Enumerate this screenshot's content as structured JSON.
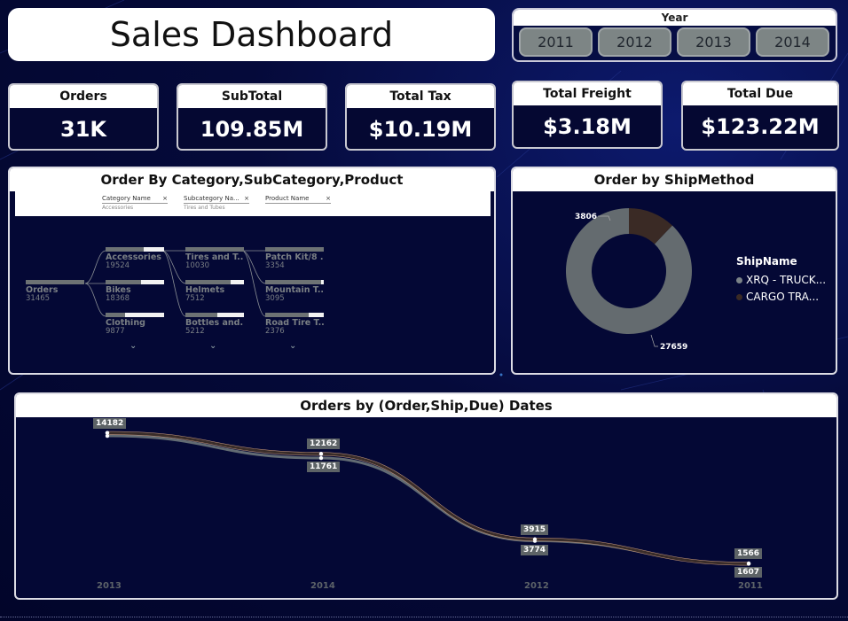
{
  "title": "Sales Dashboard",
  "year_slicer": {
    "label": "Year",
    "years": [
      "2011",
      "2012",
      "2013",
      "2014"
    ]
  },
  "kpis": [
    {
      "label": "Orders",
      "value": "31K"
    },
    {
      "label": "SubTotal",
      "value": "109.85M"
    },
    {
      "label": "Total Tax",
      "value": "$10.19M"
    },
    {
      "label": "Total Freight",
      "value": "$3.18M"
    },
    {
      "label": "Total Due",
      "value": "$123.22M"
    }
  ],
  "decomposition": {
    "title": "Order By Category,SubCategory,Product",
    "filters": [
      {
        "name": "Category Name",
        "sub": "Accessories"
      },
      {
        "name": "Subcategory Na...",
        "sub": "Tires and Tubes"
      },
      {
        "name": "Product Name",
        "sub": ""
      }
    ],
    "root": {
      "label": "Orders",
      "count": "31465",
      "share": 1.0
    },
    "level1": [
      {
        "label": "Accessories",
        "count": "19524",
        "share": 0.62
      },
      {
        "label": "Bikes",
        "count": "18368",
        "share": 0.58
      },
      {
        "label": "Clothing",
        "count": "9877",
        "share": 0.31
      }
    ],
    "level2": [
      {
        "label": "Tires and T...",
        "count": "10030",
        "share": 1.0
      },
      {
        "label": "Helmets",
        "count": "7512",
        "share": 0.75
      },
      {
        "label": "Bottles and...",
        "count": "5212",
        "share": 0.52
      }
    ],
    "level3": [
      {
        "label": "Patch Kit/8 ...",
        "count": "3354",
        "share": 1.0
      },
      {
        "label": "Mountain T...",
        "count": "3095",
        "share": 0.92
      },
      {
        "label": "Road Tire T...",
        "count": "2376",
        "share": 0.71
      }
    ]
  },
  "shipmethod": {
    "title": "Order by ShipMethod",
    "legend_title": "ShipName",
    "colors": [
      "#646b6f",
      "#3a2a25"
    ],
    "chart_data": {
      "type": "pie",
      "labels": [
        "XRQ - TRUCK...",
        "CARGO TRA..."
      ],
      "values": [
        27659,
        3806
      ]
    }
  },
  "dates_chart": {
    "title": "Orders by (Order,Ship,Due) Dates",
    "colors": [
      "#626b73",
      "#3a2d2a",
      "#c89a80"
    ],
    "chart_data": {
      "type": "line",
      "categories": [
        "2013",
        "2014",
        "2012",
        "2011"
      ],
      "series": [
        {
          "values": [
            14182,
            12162,
            3915,
            1566
          ]
        },
        {
          "values": [
            14182,
            12162,
            3915,
            1566
          ]
        },
        {
          "values": [
            13900,
            11761,
            3774,
            1607
          ]
        }
      ],
      "data_labels": [
        {
          "series": 0,
          "index": 0,
          "text": "14182"
        },
        {
          "series": 0,
          "index": 1,
          "text": "12162"
        },
        {
          "series": 2,
          "index": 1,
          "text": "11761"
        },
        {
          "series": 0,
          "index": 2,
          "text": "3915"
        },
        {
          "series": 2,
          "index": 2,
          "text": "3774"
        },
        {
          "series": 0,
          "index": 3,
          "text": "1566"
        },
        {
          "series": 2,
          "index": 3,
          "text": "1607"
        }
      ]
    }
  }
}
